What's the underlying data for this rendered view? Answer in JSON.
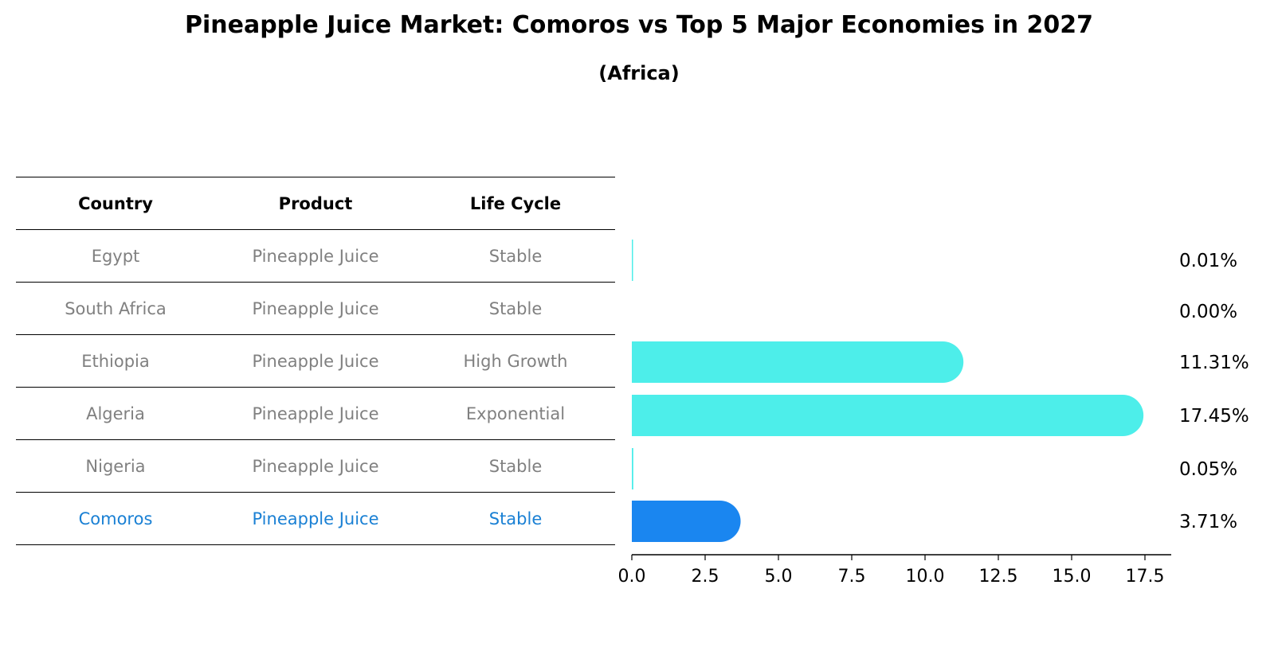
{
  "header": {
    "title": "Pineapple Juice Market: Comoros vs Top 5 Major Economies in 2027",
    "subtitle": "(Africa)"
  },
  "table": {
    "columns": [
      "Country",
      "Product",
      "Life Cycle"
    ],
    "rows": [
      {
        "country": "Egypt",
        "product": "Pineapple Juice",
        "life_cycle": "Stable"
      },
      {
        "country": "South Africa",
        "product": "Pineapple Juice",
        "life_cycle": "Stable"
      },
      {
        "country": "Ethiopia",
        "product": "Pineapple Juice",
        "life_cycle": "High Growth"
      },
      {
        "country": "Algeria",
        "product": "Pineapple Juice",
        "life_cycle": "Exponential"
      },
      {
        "country": "Nigeria",
        "product": "Pineapple Juice",
        "life_cycle": "Stable"
      },
      {
        "country": "Comoros",
        "product": "Pineapple Juice",
        "life_cycle": "Stable"
      }
    ]
  },
  "colors": {
    "bar": "#4deeea",
    "highlight_bar": "#1a86f0",
    "highlight_text": "#1a80d4",
    "muted_text": "#808080"
  },
  "chart_data": {
    "type": "bar",
    "orientation": "horizontal",
    "categories": [
      "Egypt",
      "South Africa",
      "Ethiopia",
      "Algeria",
      "Nigeria",
      "Comoros"
    ],
    "values": [
      0.01,
      0.0,
      11.31,
      17.45,
      0.05,
      3.71
    ],
    "value_labels": [
      "0.01%",
      "0.00%",
      "11.31%",
      "17.45%",
      "0.05%",
      "3.71%"
    ],
    "highlight": "Comoros",
    "xlim": [
      0,
      18.3
    ],
    "xticks": [
      0.0,
      2.5,
      5.0,
      7.5,
      10.0,
      12.5,
      15.0,
      17.5
    ],
    "xtick_labels": [
      "0.0",
      "2.5",
      "5.0",
      "7.5",
      "10.0",
      "12.5",
      "15.0",
      "17.5"
    ],
    "grid": false,
    "legend": "none"
  }
}
